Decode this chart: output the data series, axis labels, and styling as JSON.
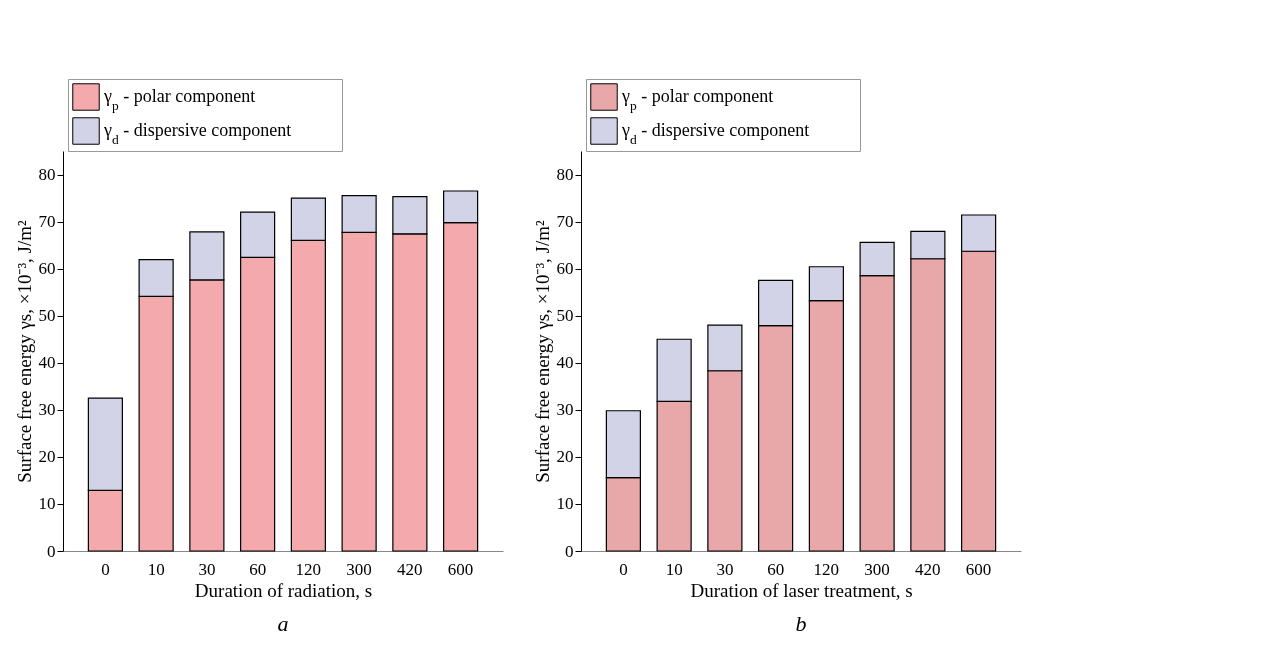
{
  "chart_data": [
    {
      "type": "bar",
      "stacked": true,
      "xlabel": "Duration of radiation, s",
      "ylabel": "Surface free energy γs, ×10⁻³, J/m²",
      "categories": [
        "0",
        "10",
        "30",
        "60",
        "120",
        "300",
        "420",
        "600"
      ],
      "ylim": [
        0,
        85
      ],
      "yticks": [
        0,
        10,
        20,
        30,
        40,
        50,
        60,
        70,
        80
      ],
      "grid": false,
      "legend": "top left",
      "annotations": [
        "a"
      ],
      "series": [
        {
          "name": "γ$_{p}$ - polar component",
          "color": "#f4aaad",
          "values": [
            12.9,
            54.1,
            57.6,
            62.4,
            66.0,
            67.7,
            67.4,
            69.8
          ]
        },
        {
          "name": "γ$_{d}$ - dispersive component",
          "color": "#d3d3e8",
          "values": [
            19.6,
            7.8,
            10.2,
            9.6,
            9.0,
            7.8,
            7.9,
            6.7
          ]
        }
      ]
    },
    {
      "type": "bar",
      "stacked": true,
      "xlabel": "Duration of laser treatment, s",
      "ylabel": "Surface free energy γs, ×10⁻³, J/m²",
      "categories": [
        "0",
        "10",
        "30",
        "60",
        "120",
        "300",
        "420",
        "600"
      ],
      "ylim": [
        0,
        85
      ],
      "yticks": [
        0,
        10,
        20,
        30,
        40,
        50,
        60,
        70,
        80
      ],
      "grid": false,
      "legend": "top left",
      "annotations": [
        "b"
      ],
      "series": [
        {
          "name": "γ$_{p}$ - polar component",
          "color": "#e8a8a9",
          "values": [
            15.6,
            31.8,
            38.3,
            47.9,
            53.2,
            58.5,
            62.1,
            63.7
          ]
        },
        {
          "name": "γ$_{d}$ - dispersive component",
          "color": "#d3d3e8",
          "values": [
            14.2,
            13.2,
            9.7,
            9.6,
            7.2,
            7.1,
            5.8,
            7.7
          ]
        }
      ]
    }
  ]
}
